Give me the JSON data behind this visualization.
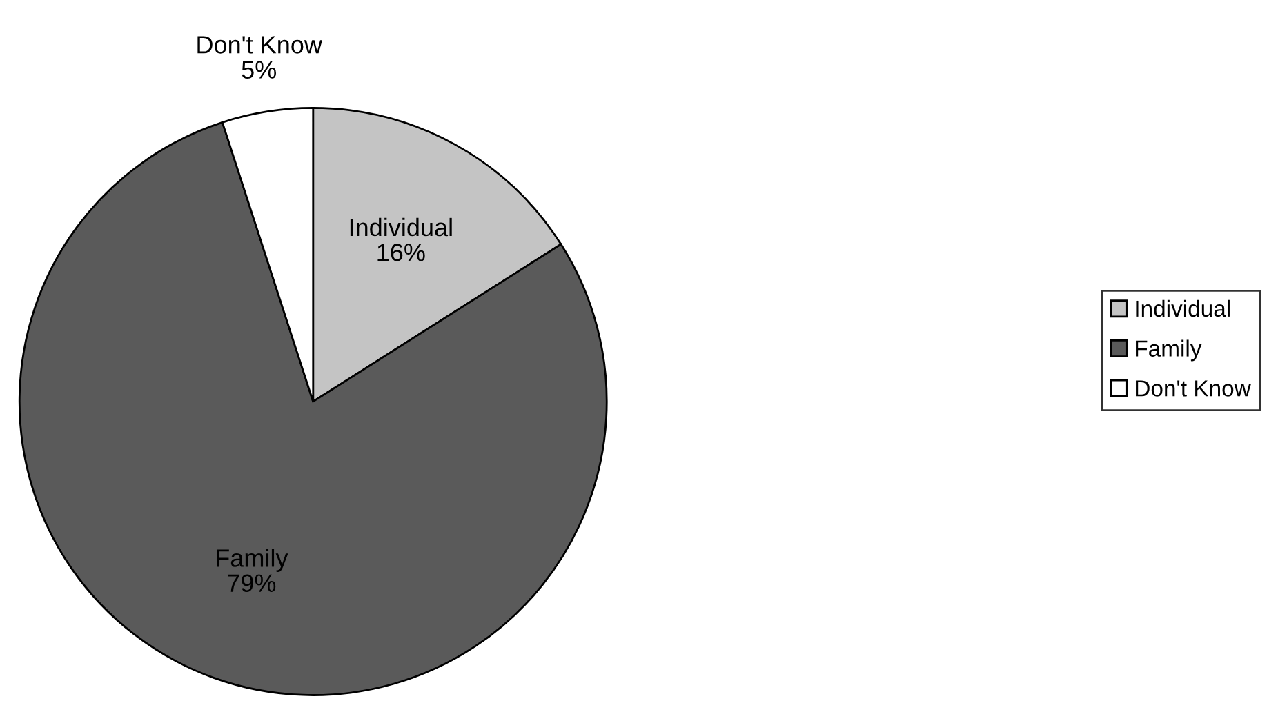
{
  "chart_data": {
    "type": "pie",
    "categories": [
      "Individual",
      "Family",
      "Don't Know"
    ],
    "values": [
      16,
      79,
      5
    ],
    "colors": [
      "#c4c4c4",
      "#5a5a5a",
      "#ffffff"
    ],
    "value_labels": [
      "16%",
      "79%",
      "5%"
    ],
    "legend": "right"
  }
}
